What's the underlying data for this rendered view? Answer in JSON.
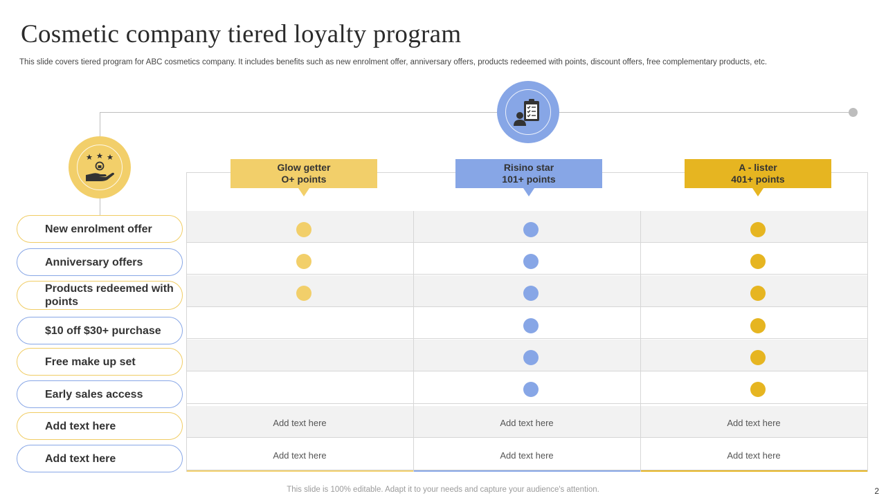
{
  "title": "Cosmetic company tiered loyalty program",
  "subtitle": "This slide covers tiered program for ABC cosmetics company. It includes benefits such as new enrolment offer, anniversary offers, products redeemed with points, discount offers, free complementary products, etc.",
  "footer": "This slide is 100% editable. Adapt it to your needs and capture your audience's attention.",
  "page_number": "2",
  "colors": {
    "yellow_light": "#f2cf6a",
    "blue": "#87a6e6",
    "gold": "#e6b521",
    "row_gray": "#f2f2f2",
    "line_gray": "#bdbdbd"
  },
  "icons": {
    "left_circle": "hand-stars-icon",
    "top_circle": "clipboard-person-icon"
  },
  "tiers": [
    {
      "name": "Glow getter",
      "points": "O+ points",
      "color": "#f2cf6a"
    },
    {
      "name": "Risino star",
      "points": "101+ points",
      "color": "#87a6e6"
    },
    {
      "name": "A - lister",
      "points": "401+ points",
      "color": "#e6b521"
    }
  ],
  "benefits": [
    {
      "label": "New enrolment offer",
      "tiers": [
        true,
        true,
        true
      ]
    },
    {
      "label": "Anniversary offers",
      "tiers": [
        true,
        true,
        true
      ]
    },
    {
      "label": "Products redeemed with points",
      "tiers": [
        true,
        true,
        true
      ]
    },
    {
      "label": "$10 off  $30+ purchase",
      "tiers": [
        false,
        true,
        true
      ]
    },
    {
      "label": "Free make up set",
      "tiers": [
        false,
        true,
        true
      ]
    },
    {
      "label": "Early sales access",
      "tiers": [
        false,
        true,
        true
      ]
    },
    {
      "label": "Add text here",
      "cells": [
        "Add text here",
        "Add text here",
        "Add text here"
      ]
    },
    {
      "label": "Add text here",
      "cells": [
        "Add text here",
        "Add text here",
        "Add text here"
      ]
    }
  ]
}
